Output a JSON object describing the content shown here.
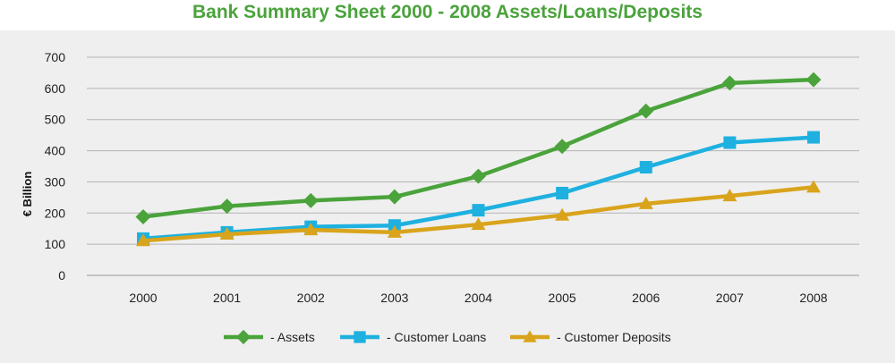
{
  "chart_data": {
    "type": "line",
    "title": "Bank Summary Sheet 2000 - 2008 Assets/Loans/Deposits",
    "xlabel": "",
    "ylabel": "€ Billion",
    "categories": [
      "2000",
      "2001",
      "2002",
      "2003",
      "2004",
      "2005",
      "2006",
      "2007",
      "2008"
    ],
    "ylim": [
      0,
      700
    ],
    "yticks": [
      "0",
      "100",
      "200",
      "300",
      "400",
      "500",
      "600",
      "700"
    ],
    "grid": true,
    "legend_position": "bottom",
    "series": [
      {
        "name": "- Assets",
        "marker": "diamond",
        "color": "#4aa33b",
        "values": [
          188,
          222,
          240,
          252,
          318,
          414,
          527,
          617,
          628
        ]
      },
      {
        "name": "- Customer Loans",
        "marker": "square",
        "color": "#1eb1e0",
        "values": [
          118,
          138,
          156,
          160,
          209,
          264,
          347,
          426,
          443
        ]
      },
      {
        "name": "- Customer Deposits",
        "marker": "triangle",
        "color": "#d9a41c",
        "values": [
          111,
          132,
          146,
          138,
          163,
          193,
          230,
          255,
          283
        ]
      }
    ]
  }
}
